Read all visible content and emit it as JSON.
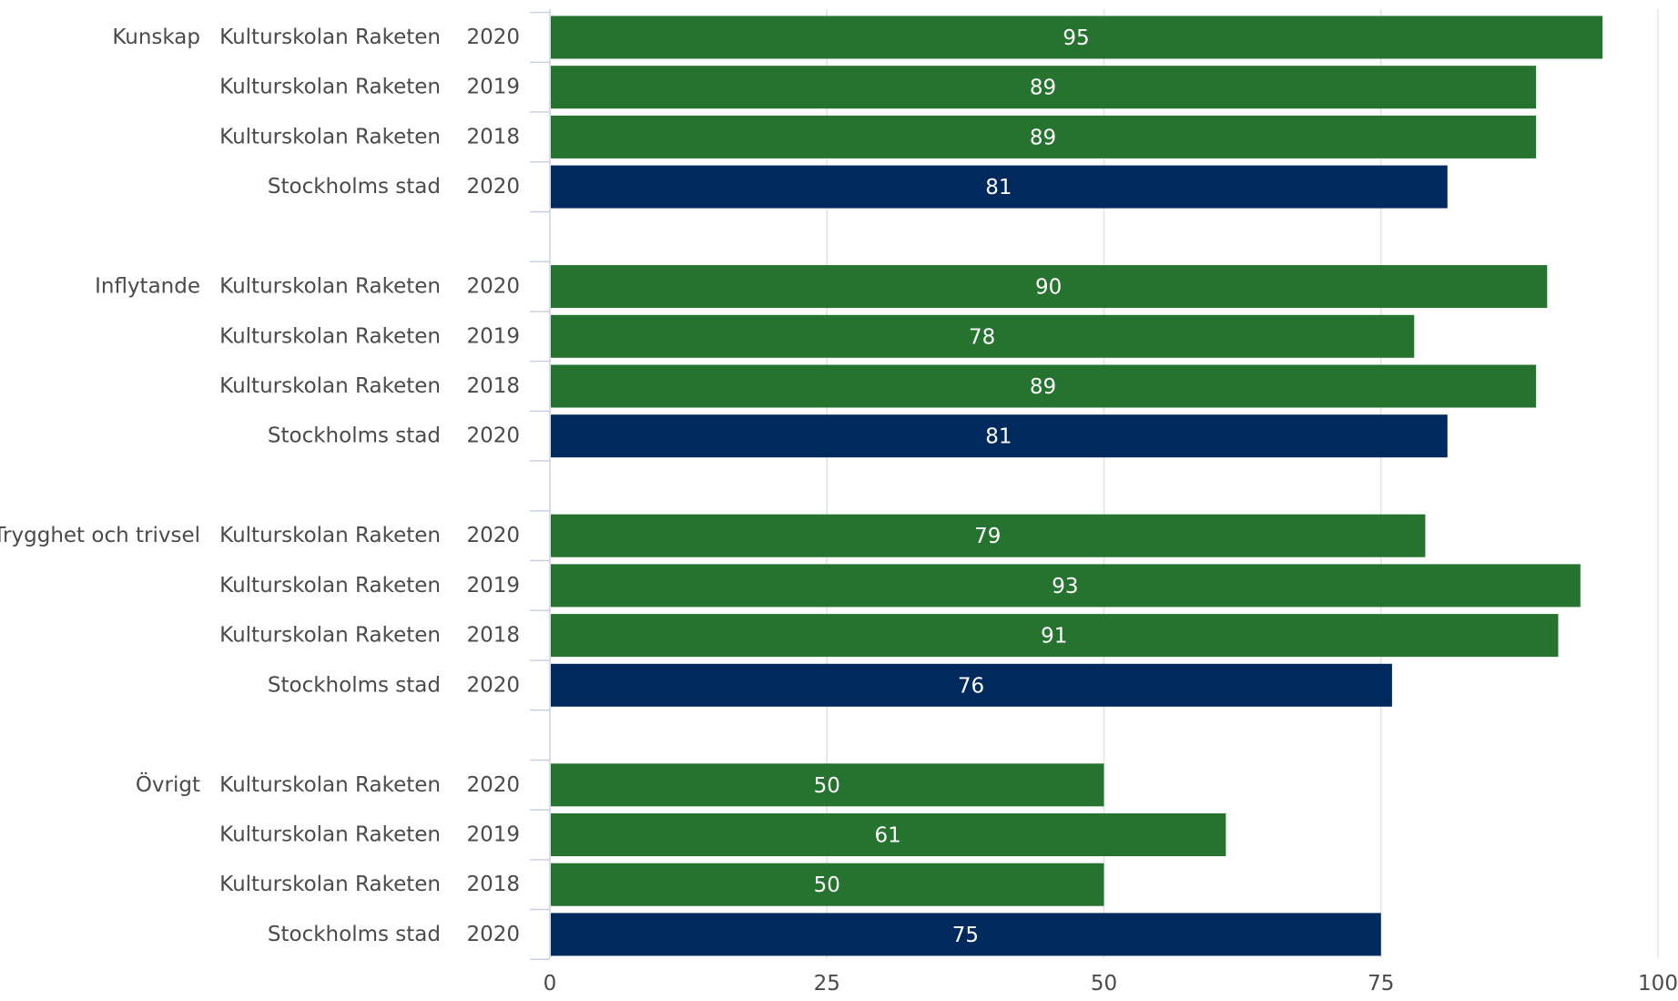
{
  "chart_data": {
    "type": "bar",
    "orientation": "horizontal",
    "xlim": [
      0,
      100
    ],
    "x_ticks": [
      0,
      25,
      50,
      75,
      100
    ],
    "grid": true,
    "colors": {
      "Kulturskolan Raketen": "#25732f",
      "Stockholms stad": "#002a5e"
    },
    "groups": [
      {
        "category": "Kunskap",
        "bars": [
          {
            "entity": "Kulturskolan Raketen",
            "year": "2020",
            "value": 95
          },
          {
            "entity": "Kulturskolan Raketen",
            "year": "2019",
            "value": 89
          },
          {
            "entity": "Kulturskolan Raketen",
            "year": "2018",
            "value": 89
          },
          {
            "entity": "Stockholms stad",
            "year": "2020",
            "value": 81
          }
        ]
      },
      {
        "category": "Inflytande",
        "bars": [
          {
            "entity": "Kulturskolan Raketen",
            "year": "2020",
            "value": 90
          },
          {
            "entity": "Kulturskolan Raketen",
            "year": "2019",
            "value": 78
          },
          {
            "entity": "Kulturskolan Raketen",
            "year": "2018",
            "value": 89
          },
          {
            "entity": "Stockholms stad",
            "year": "2020",
            "value": 81
          }
        ]
      },
      {
        "category": "Trygghet och trivsel",
        "bars": [
          {
            "entity": "Kulturskolan Raketen",
            "year": "2020",
            "value": 79
          },
          {
            "entity": "Kulturskolan Raketen",
            "year": "2019",
            "value": 93
          },
          {
            "entity": "Kulturskolan Raketen",
            "year": "2018",
            "value": 91
          },
          {
            "entity": "Stockholms stad",
            "year": "2020",
            "value": 76
          }
        ]
      },
      {
        "category": "Övrigt",
        "bars": [
          {
            "entity": "Kulturskolan Raketen",
            "year": "2020",
            "value": 50
          },
          {
            "entity": "Kulturskolan Raketen",
            "year": "2019",
            "value": 61
          },
          {
            "entity": "Kulturskolan Raketen",
            "year": "2018",
            "value": 50
          },
          {
            "entity": "Stockholms stad",
            "year": "2020",
            "value": 75
          }
        ]
      }
    ]
  }
}
